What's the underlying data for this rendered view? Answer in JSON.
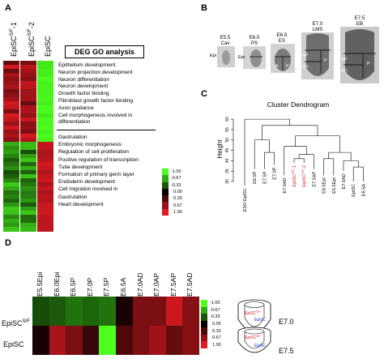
{
  "panels": {
    "A": "A",
    "B": "B",
    "C": "C",
    "D": "D"
  },
  "panel_a": {
    "columns": [
      "EpiSC",
      "EpiSC",
      "EpiSC"
    ],
    "column_sups": [
      "S/F",
      "S/F",
      ""
    ],
    "column_suffixes": [
      "-1",
      "-2",
      ""
    ],
    "go_title": "DEG GO analysis",
    "go_terms_top": [
      "Epithelium development",
      "Neuron projection development",
      "Neuron differentiation",
      "Neuron development",
      "Growth factor binding",
      "Fibroblast growth factor binding",
      "Axon guidance",
      "Cell morphogenesis involved in",
      "differentiation"
    ],
    "go_terms_bottom": [
      "Gastrulation",
      "Embryonic morphogenesis",
      "Regulation of cell proliferation",
      "Positive regulation of transcription",
      "Tube development",
      "Formation of primary germ layer",
      "Endoderm development",
      "Cell migration involved in",
      "Gastrulation",
      "Heart development"
    ],
    "legend": [
      "-1.00",
      "-0.67",
      "-0.33",
      "0.00",
      "0.33",
      "0.67",
      "1.00"
    ],
    "colors": {
      "neg": "#4cff1e",
      "zero": "#000000",
      "pos": "#e11b22"
    }
  },
  "panel_b": {
    "stages": [
      {
        "stage": "E5.5",
        "sub": "Cav"
      },
      {
        "stage": "E6.0",
        "sub": "PS"
      },
      {
        "stage": "E6.5",
        "sub": "ES"
      },
      {
        "stage": "E7.0",
        "sub": "LMS"
      },
      {
        "stage": "E7.5",
        "sub": "EB"
      }
    ],
    "region_labels": {
      "epi1": "Epi",
      "epi2": "Epi",
      "a65": "A",
      "p65": "P",
      "ap70": "AP",
      "ad70": "AD",
      "p70": "P",
      "ap75": "AP",
      "ad75": "AD",
      "p75": "P"
    }
  },
  "panel_c": {
    "title": "Cluster Dendrogram",
    "ylabel": "Height",
    "yticks": [
      "30",
      "35",
      "40",
      "45",
      "50",
      "55",
      "60"
    ],
    "leaves": [
      {
        "label": "ESD-EpiSC",
        "highlight": false
      },
      {
        "label": "E6.5P",
        "highlight": false
      },
      {
        "label": "E7.5P",
        "highlight": false
      },
      {
        "label": "E7.0P",
        "highlight": false
      },
      {
        "label": "E7.0AD",
        "highlight": false
      },
      {
        "label": "EpiSC",
        "sup": "S/F",
        "suffix": "-1",
        "highlight": true
      },
      {
        "label": "EpiSC",
        "sup": "S/F",
        "suffix": "-2",
        "highlight": true
      },
      {
        "label": "E7.5AP",
        "highlight": false
      },
      {
        "label": "E6.0Epi",
        "highlight": false
      },
      {
        "label": "E5.5Epi",
        "highlight": false
      },
      {
        "label": "E7.5AD",
        "highlight": false
      },
      {
        "label": "EpiSC",
        "highlight": false
      },
      {
        "label": "E6.5A",
        "highlight": false
      }
    ],
    "highlight_color": "#e11b22"
  },
  "panel_d": {
    "columns": [
      "E5.5Epi",
      "E6.0Epi",
      "E6.5P",
      "E7.0P",
      "E7.5P",
      "E6.5A",
      "E7.0AD",
      "E7.0AP",
      "E7.5AP",
      "E7.5AD"
    ],
    "rows": [
      {
        "label": "EpiSC",
        "sup": "S/F",
        "values": [
          -0.3,
          -0.35,
          -0.45,
          -0.4,
          -0.45,
          0.1,
          0.55,
          0.55,
          0.9,
          0.6
        ]
      },
      {
        "label": "EpiSC",
        "sup": "",
        "values": [
          0.1,
          0.75,
          0.55,
          0.25,
          -1.0,
          0.35,
          0.55,
          0.7,
          0.45,
          0.6
        ]
      }
    ],
    "legend": [
      "-1.00",
      "-0.67",
      "-0.33",
      "0.00",
      "0.33",
      "0.67",
      "1.00"
    ],
    "embryos": [
      {
        "stage": "E7.0",
        "tags": [
          {
            "text": "EpiSC",
            "sup": "S/F",
            "color": "#e11b22"
          },
          {
            "text": "EpiSC",
            "sup": "",
            "color": "#1c35c8"
          }
        ]
      },
      {
        "stage": "E7.5",
        "tags": [
          {
            "text": "EpiSC",
            "sup": "S/F",
            "color": "#e11b22"
          },
          {
            "text": "EpiSC",
            "sup": "",
            "color": "#1c35c8"
          }
        ]
      }
    ]
  }
}
